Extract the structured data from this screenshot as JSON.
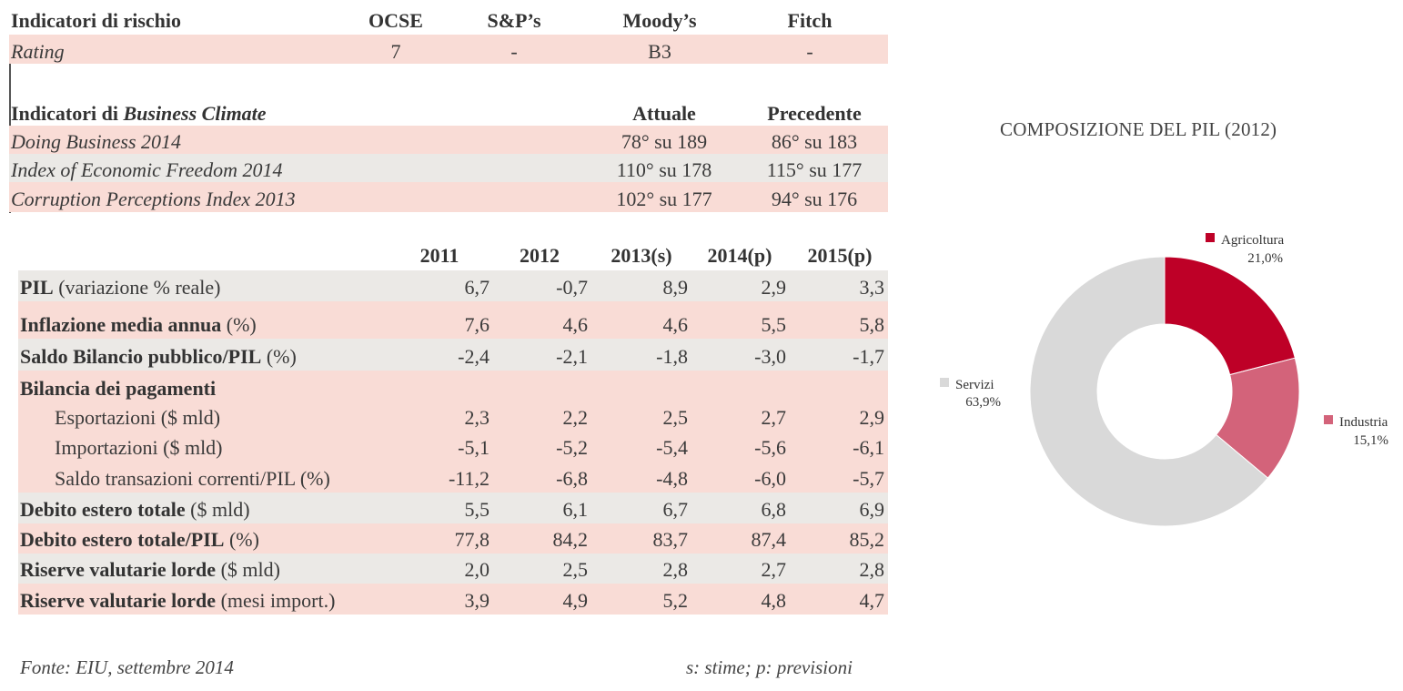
{
  "risk": {
    "heading": "Indicatori di rischio",
    "cols": [
      "OCSE",
      "S&P’s",
      "Moody’s",
      "Fitch"
    ],
    "rating_label": "Rating",
    "rating_values": [
      "7",
      "-",
      "B3",
      "-"
    ]
  },
  "business": {
    "heading_prefix": "Indicatori di",
    "heading_emph": "Business Climate",
    "col_current": "Attuale",
    "col_previous": "Precedente",
    "rows": [
      {
        "label": "Doing Business 2014",
        "current": "78° su 189",
        "previous": "86° su 183"
      },
      {
        "label": "Index of Economic Freedom 2014",
        "current": "110° su 178",
        "previous": "115° su 177"
      },
      {
        "label": "Corruption Perceptions Index 2013",
        "current": "102° su 177",
        "previous": "94° su 176"
      }
    ]
  },
  "macro": {
    "years": [
      "2011",
      "2012",
      "2013(s)",
      "2014(p)",
      "2015(p)"
    ],
    "rows": [
      {
        "bold": "PIL",
        "rest": " (variazione % reale)",
        "values": [
          "6,7",
          "-0,7",
          "8,9",
          "2,9",
          "3,3"
        ]
      },
      {
        "bold": "Inflazione media annua",
        "rest": " (%)",
        "values": [
          "7,6",
          "4,6",
          "4,6",
          "5,5",
          "5,8"
        ]
      },
      {
        "bold": "Saldo Bilancio pubblico/PIL",
        "rest": " (%)",
        "values": [
          "-2,4",
          "-2,1",
          "-1,8",
          "-3,0",
          "-1,7"
        ]
      },
      {
        "bold": "Bilancia dei pagamenti",
        "rest": "",
        "values": []
      },
      {
        "bold": "",
        "rest": "Esportazioni ($ mld)",
        "values": [
          "2,3",
          "2,2",
          "2,5",
          "2,7",
          "2,9"
        ]
      },
      {
        "bold": "",
        "rest": "Importazioni ($ mld)",
        "values": [
          "-5,1",
          "-5,2",
          "-5,4",
          "-5,6",
          "-6,1"
        ]
      },
      {
        "bold": "",
        "rest": "Saldo transazioni correnti/PIL (%)",
        "values": [
          "-11,2",
          "-6,8",
          "-4,8",
          "-6,0",
          "-5,7"
        ]
      },
      {
        "bold": "Debito estero totale",
        "rest": " ($ mld)",
        "values": [
          "5,5",
          "6,1",
          "6,7",
          "6,8",
          "6,9"
        ]
      },
      {
        "bold": "Debito estero totale/PIL",
        "rest": " (%)",
        "values": [
          "77,8",
          "84,2",
          "83,7",
          "87,4",
          "85,2"
        ]
      },
      {
        "bold": "Riserve valutarie lorde",
        "rest": " ($ mld)",
        "values": [
          "2,0",
          "2,5",
          "2,8",
          "2,7",
          "2,8"
        ]
      },
      {
        "bold": "Riserve valutarie lorde",
        "rest": " (mesi import.)",
        "values": [
          "3,9",
          "4,9",
          "5,2",
          "4,8",
          "4,7"
        ]
      }
    ]
  },
  "chart_data": {
    "type": "pie",
    "title": "COMPOSIZIONE DEL PIL (2012)",
    "categories": [
      "Agricoltura",
      "Industria",
      "Servizi"
    ],
    "values": [
      21.0,
      15.1,
      63.9
    ],
    "value_labels": [
      "21,0%",
      "15,1%",
      "63,9%"
    ],
    "colors": [
      "#be0027",
      "#d3637a",
      "#d9d9d9"
    ],
    "donut": true
  },
  "footer": {
    "source": "Fonte: EIU, settembre 2014",
    "note": "s: stime; p: previsioni"
  }
}
